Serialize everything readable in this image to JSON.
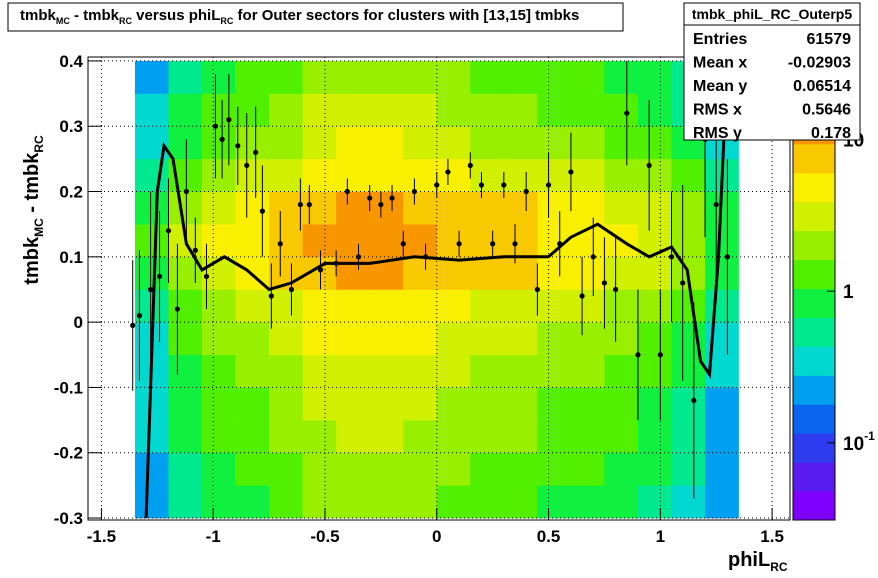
{
  "chart_data": {
    "type": "hist2d",
    "title": [
      {
        "text": "tmbk"
      },
      {
        "text": "MC",
        "sub": true
      },
      {
        "text": " - tmbk"
      },
      {
        "text": "RC",
        "sub": true
      },
      {
        "text": " versus phiL"
      },
      {
        "text": "RC",
        "sub": true
      },
      {
        "text": " for Outer sectors for clusters with [13,15] tmbks"
      }
    ],
    "xlabel": [
      {
        "text": "phiL"
      },
      {
        "text": "RC",
        "sub": true
      }
    ],
    "ylabel": [
      {
        "text": "tmbk"
      },
      {
        "text": "MC",
        "sub": true
      },
      {
        "text": " - tmbk"
      },
      {
        "text": "RC",
        "sub": true
      }
    ],
    "xlim": [
      -1.56,
      1.58
    ],
    "ylim": [
      -0.303,
      0.406
    ],
    "xticks": [
      -1.5,
      -1,
      -0.5,
      0,
      0.5,
      1,
      1.5
    ],
    "yticks": [
      -0.3,
      -0.2,
      -0.1,
      0,
      0.1,
      0.2,
      0.3,
      0.4
    ],
    "grid": true,
    "zlog": true,
    "zlim": [
      0.031,
      35
    ],
    "zticks": [
      {
        "value": 10,
        "label": "10"
      },
      {
        "value": 1,
        "label": "1"
      },
      {
        "value": 0.1,
        "label": "10",
        "exponent": "-1"
      }
    ],
    "palette": [
      "#7f00ff",
      "#5a1cf0",
      "#2e3cf0",
      "#0a64f0",
      "#00a0f0",
      "#00d8d0",
      "#00e890",
      "#10f040",
      "#50f000",
      "#98f000",
      "#d0f000",
      "#f8f000",
      "#f8c800",
      "#f89600",
      "#f86000",
      "#f02000"
    ],
    "xbins": [
      -1.35,
      -1.2,
      -1.05,
      -0.9,
      -0.75,
      -0.6,
      -0.45,
      -0.3,
      -0.15,
      0,
      0.15,
      0.3,
      0.45,
      0.6,
      0.75,
      0.9,
      1.05,
      1.2,
      1.35
    ],
    "ybins": [
      -0.3,
      -0.25,
      -0.2,
      -0.15,
      -0.1,
      -0.05,
      0,
      0.05,
      0.1,
      0.15,
      0.2,
      0.25,
      0.3,
      0.35,
      0.4
    ],
    "z": [
      [
        0.2,
        0.5,
        0.8,
        1,
        1.3,
        1.8,
        2,
        2,
        1.8,
        1.5,
        1.3,
        1.3,
        1,
        1,
        0.8,
        0.6,
        0.4,
        0.2
      ],
      [
        0.2,
        0.6,
        0.9,
        1.2,
        1.5,
        2.1,
        2.4,
        2.4,
        2.1,
        1.8,
        1.5,
        1.5,
        1.2,
        1.2,
        0.9,
        0.7,
        0.5,
        0.2
      ],
      [
        0.3,
        0.7,
        1.1,
        1.4,
        1.8,
        2.5,
        2.8,
        2.8,
        2.5,
        2.1,
        1.8,
        1.8,
        1.4,
        1.4,
        1.1,
        0.8,
        0.6,
        0.2
      ],
      [
        0.3,
        0.8,
        1.2,
        1.6,
        2,
        2.8,
        3.2,
        3.2,
        2.8,
        2.4,
        2,
        2,
        1.6,
        1.6,
        1.2,
        1,
        0.6,
        0.2
      ],
      [
        0.4,
        0.9,
        1.4,
        1.8,
        2.3,
        3.2,
        3.6,
        3.6,
        3.2,
        2.7,
        2.3,
        2.3,
        1.8,
        1.8,
        1.4,
        1.1,
        0.7,
        0.3
      ],
      [
        0.4,
        1.1,
        1.7,
        2.2,
        2.8,
        3.9,
        4.4,
        4.4,
        3.9,
        3.3,
        2.8,
        2.8,
        2.2,
        2.2,
        1.7,
        1.3,
        0.9,
        0.3
      ],
      [
        0.6,
        1.5,
        2.3,
        3,
        3.8,
        5.3,
        6,
        6,
        5.3,
        4.5,
        3.8,
        3.8,
        3,
        3,
        2.3,
        1.8,
        1.2,
        0.5
      ],
      [
        1,
        2.5,
        3.8,
        5,
        6.3,
        8.8,
        10,
        10,
        8.8,
        7.5,
        6.3,
        6.3,
        5,
        5,
        3.8,
        3,
        2,
        0.8
      ],
      [
        1.2,
        3,
        4.5,
        6,
        7.5,
        10.5,
        12,
        12,
        10.5,
        9,
        7.5,
        7.5,
        6,
        6,
        4.5,
        3.6,
        2.4,
        0.9
      ],
      [
        1,
        2.5,
        3.8,
        5,
        6.3,
        8.8,
        10,
        10,
        8.8,
        7.5,
        6.3,
        6.3,
        5,
        5,
        3.8,
        3,
        2,
        0.8
      ],
      [
        0.6,
        1.5,
        2.3,
        3,
        3.8,
        5.3,
        6,
        6,
        5.3,
        4.5,
        3.8,
        3.8,
        3,
        3,
        2.3,
        1.8,
        1.2,
        0.5
      ],
      [
        0.4,
        1,
        1.5,
        2,
        2.5,
        3.5,
        4,
        4,
        3.5,
        3,
        2.5,
        2.5,
        2,
        2,
        1.5,
        1.2,
        0.8,
        0.3
      ],
      [
        0.3,
        0.8,
        1.2,
        1.6,
        2,
        2.8,
        3.2,
        3.2,
        2.8,
        2.4,
        2,
        2,
        1.6,
        1.6,
        1.2,
        1,
        0.6,
        0.2
      ],
      [
        0.2,
        0.6,
        0.9,
        1.2,
        1.5,
        2.1,
        2.4,
        2.4,
        2.1,
        1.8,
        1.5,
        1.5,
        1.2,
        1.2,
        0.9,
        0.7,
        0.5,
        0.2
      ]
    ],
    "profile": {
      "color": "#000000",
      "x": [
        -1.36,
        -1.33,
        -1.28,
        -1.24,
        -1.2,
        -1.16,
        -1.12,
        -1.08,
        -1.03,
        -0.99,
        -0.96,
        -0.93,
        -0.89,
        -0.85,
        -0.81,
        -0.78,
        -0.74,
        -0.7,
        -0.65,
        -0.61,
        -0.57,
        -0.52,
        -0.45,
        -0.4,
        -0.35,
        -0.3,
        -0.25,
        -0.2,
        -0.15,
        -0.1,
        -0.05,
        0,
        0.05,
        0.1,
        0.15,
        0.2,
        0.25,
        0.3,
        0.35,
        0.4,
        0.45,
        0.5,
        0.55,
        0.6,
        0.65,
        0.7,
        0.75,
        0.8,
        0.85,
        0.9,
        0.95,
        1.0,
        1.05,
        1.1,
        1.15,
        1.2,
        1.25,
        1.3
      ],
      "values": [
        -0.005,
        0.01,
        0.05,
        0.07,
        0.14,
        0.02,
        0.2,
        0.11,
        0.07,
        0.3,
        0.28,
        0.31,
        0.27,
        0.24,
        0.26,
        0.17,
        0.04,
        0.12,
        0.05,
        0.18,
        0.18,
        0.08,
        0.09,
        0.2,
        0.1,
        0.19,
        0.18,
        0.19,
        0.12,
        0.2,
        0.1,
        0.21,
        0.23,
        0.12,
        0.24,
        0.21,
        0.12,
        0.21,
        0.12,
        0.2,
        0.05,
        0.21,
        0.12,
        0.23,
        0.04,
        0.1,
        0.06,
        0.05,
        0.32,
        -0.05,
        0.24,
        -0.05,
        0.1,
        0.06,
        -0.12,
        0.28,
        0.18,
        0.1
      ],
      "errors": [
        0.1,
        0.1,
        0.15,
        0.1,
        0.08,
        0.1,
        0.08,
        0.05,
        0.05,
        0.08,
        0.06,
        0.07,
        0.06,
        0.08,
        0.07,
        0.07,
        0.05,
        0.05,
        0.04,
        0.04,
        0.03,
        0.03,
        0.02,
        0.02,
        0.02,
        0.02,
        0.02,
        0.02,
        0.02,
        0.02,
        0.02,
        0.02,
        0.02,
        0.02,
        0.02,
        0.02,
        0.02,
        0.02,
        0.03,
        0.03,
        0.04,
        0.05,
        0.05,
        0.06,
        0.06,
        0.06,
        0.07,
        0.08,
        0.08,
        0.1,
        0.1,
        0.1,
        0.1,
        0.15,
        0.15,
        0.15,
        0.15,
        0.15
      ]
    },
    "fit": {
      "color": "#000000",
      "x": [
        -1.3,
        -1.25,
        -1.22,
        -1.18,
        -1.12,
        -1.05,
        -0.95,
        -0.85,
        -0.75,
        -0.65,
        -0.5,
        -0.3,
        -0.1,
        0.1,
        0.3,
        0.5,
        0.6,
        0.72,
        0.85,
        0.95,
        1.05,
        1.12,
        1.18,
        1.22,
        1.26,
        1.3
      ],
      "values": [
        -0.3,
        0.2,
        0.27,
        0.25,
        0.12,
        0.08,
        0.1,
        0.08,
        0.05,
        0.06,
        0.09,
        0.09,
        0.1,
        0.095,
        0.1,
        0.1,
        0.13,
        0.15,
        0.12,
        0.1,
        0.115,
        0.08,
        -0.06,
        -0.08,
        0.1,
        0.4
      ]
    },
    "stats": {
      "name": "tmbk_phiL_RC_Outerp5",
      "rows": [
        [
          "Entries",
          "61579"
        ],
        [
          "Mean x",
          "-0.02903"
        ],
        [
          "Mean y",
          "0.06514"
        ],
        [
          "RMS x",
          "0.5646"
        ],
        [
          "RMS y",
          "0.178"
        ]
      ]
    }
  }
}
